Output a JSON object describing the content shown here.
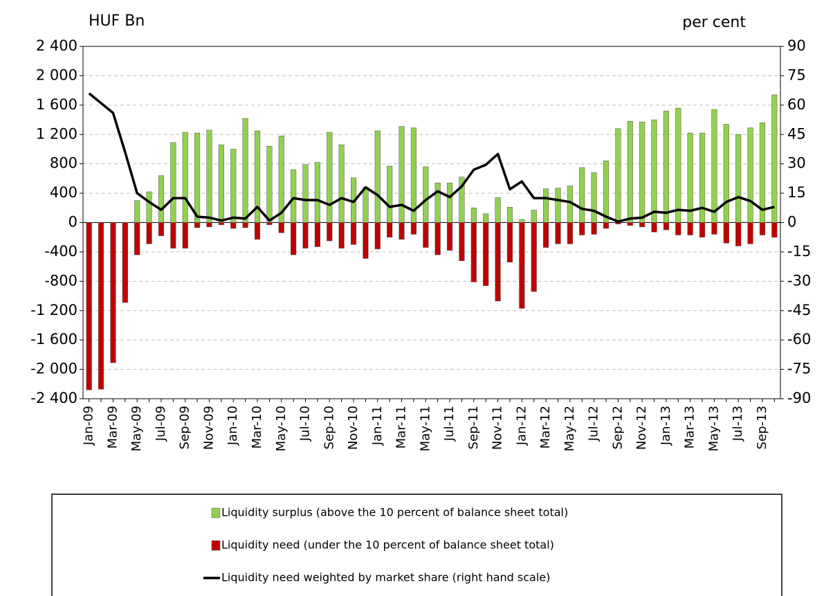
{
  "chart_data": {
    "type": "bar_line",
    "y_title": "HUF Bn",
    "y2_title": "per cent",
    "categories": [
      "Jan-09",
      null,
      "Mar-09",
      null,
      "May-09",
      null,
      "Jul-09",
      null,
      "Sep-09",
      null,
      "Nov-09",
      null,
      "Jan-10",
      null,
      "Mar-10",
      null,
      "May-10",
      null,
      "Jul-10",
      null,
      "Sep-10",
      null,
      "Nov-10",
      null,
      "Jan-11",
      null,
      "Mar-11",
      null,
      "May-11",
      null,
      "Jul-11",
      null,
      "Sep-11",
      null,
      "Nov-11",
      null,
      "Jan-12",
      null,
      "Mar-12",
      null,
      "May-12",
      null,
      "Jul-12",
      null,
      "Sep-12",
      null,
      "Nov-12",
      null,
      "Jan-13",
      null,
      "Mar-13",
      null,
      "May-13",
      null,
      "Jul-13",
      null,
      "Sep-13",
      null
    ],
    "series": [
      {
        "name": "Liquidity surplus (above the 10 percent of balance sheet total)",
        "color": "#92d050",
        "kind": "bar",
        "values": [
          0,
          0,
          0,
          0,
          300,
          420,
          640,
          1090,
          1230,
          1220,
          1260,
          1060,
          1000,
          1420,
          1250,
          1040,
          1180,
          720,
          790,
          820,
          1230,
          1060,
          610,
          480,
          1250,
          770,
          1310,
          1290,
          760,
          540,
          540,
          620,
          200,
          120,
          340,
          210,
          40,
          170,
          460,
          470,
          500,
          750,
          680,
          840,
          1280,
          1380,
          1370,
          1400,
          1520,
          1560,
          1220,
          1220,
          1540,
          1340,
          1200,
          1290,
          1360,
          1740
        ]
      },
      {
        "name": "Liquidity need (under the 10 percent of balance sheet total)",
        "color": "#c00000",
        "kind": "bar",
        "values": [
          -2280,
          -2270,
          -1910,
          -1090,
          -440,
          -290,
          -180,
          -350,
          -350,
          -70,
          -60,
          -30,
          -80,
          -70,
          -230,
          -30,
          -140,
          -440,
          -350,
          -330,
          -250,
          -350,
          -300,
          -490,
          -360,
          -200,
          -230,
          -160,
          -340,
          -440,
          -380,
          -520,
          -810,
          -860,
          -1070,
          -540,
          -1170,
          -940,
          -340,
          -290,
          -290,
          -170,
          -160,
          -80,
          -20,
          -40,
          -60,
          -130,
          -100,
          -170,
          -170,
          -200,
          -160,
          -280,
          -320,
          -290,
          -170,
          -200
        ]
      },
      {
        "name": "Liquidity need weighted by market share (right hand scale)",
        "color": "#000000",
        "kind": "line",
        "axis": "y2",
        "values": [
          66,
          61,
          56,
          36,
          15,
          10.5,
          6.5,
          12.5,
          12.5,
          3,
          2.5,
          1,
          2.5,
          2,
          8,
          1,
          5,
          12.5,
          11.5,
          11.5,
          9,
          12.5,
          10.5,
          18,
          14,
          8,
          9,
          6,
          11.5,
          16,
          13,
          18.5,
          27,
          29.5,
          35,
          17,
          21,
          12.5,
          12.5,
          11.5,
          10.5,
          7,
          6,
          3,
          0.5,
          2,
          2.5,
          5.5,
          5,
          6.5,
          6,
          7.5,
          5.5,
          10.5,
          13,
          11,
          6.5,
          8
        ]
      }
    ],
    "ylim": [
      -2400,
      2400
    ],
    "yticks": [
      {
        "value": -2400,
        "label": "-2 400"
      },
      {
        "value": -2000,
        "label": "-2 000"
      },
      {
        "value": -1600,
        "label": "-1 600"
      },
      {
        "value": -1200,
        "label": "-1 200"
      },
      -800,
      -400,
      0,
      400,
      800,
      {
        "value": 1200,
        "label": "1 200"
      },
      {
        "value": 1600,
        "label": "1 600"
      },
      {
        "value": 2000,
        "label": "2 000"
      },
      {
        "value": 2400,
        "label": "2 400"
      }
    ],
    "y2lim": [
      -90,
      90
    ],
    "y2ticks": [
      -90,
      -75,
      -60,
      -45,
      -30,
      -15,
      0,
      15,
      30,
      45,
      60,
      75,
      90
    ],
    "grid": true,
    "legend": "bottom"
  }
}
